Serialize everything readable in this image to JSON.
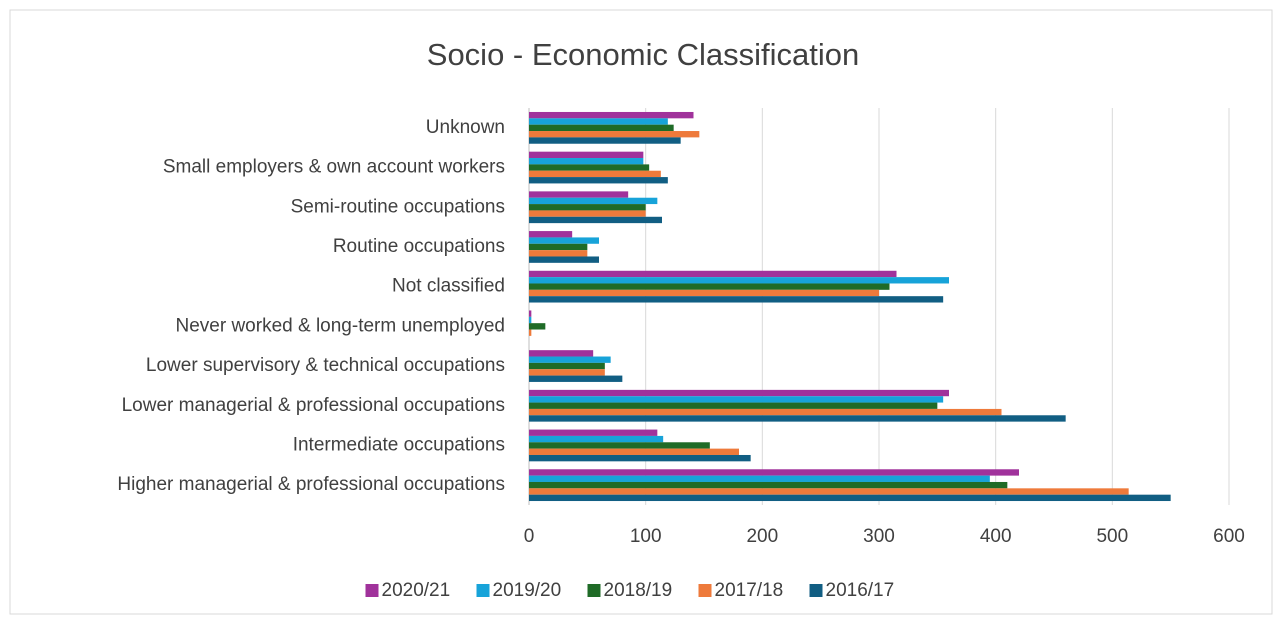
{
  "chart_data": {
    "type": "bar",
    "orientation": "horizontal",
    "title": "Socio - Economic Classification",
    "categories": [
      "Unknown",
      "Small employers & own account workers",
      "Semi-routine occupations",
      "Routine occupations",
      "Not classified",
      "Never worked & long-term unemployed",
      "Lower supervisory & technical occupations",
      "Lower managerial & professional occupations",
      "Intermediate occupations",
      "Higher managerial & professional occupations"
    ],
    "series": [
      {
        "name": "2020/21",
        "color": "#a0329b",
        "values": [
          141,
          98,
          85,
          37,
          315,
          2,
          55,
          360,
          110,
          420
        ]
      },
      {
        "name": "2019/20",
        "color": "#17a3d9",
        "values": [
          119,
          98,
          110,
          60,
          360,
          2,
          70,
          355,
          115,
          395
        ]
      },
      {
        "name": "2018/19",
        "color": "#1f6b27",
        "values": [
          124,
          103,
          100,
          50,
          309,
          14,
          65,
          350,
          155,
          410
        ]
      },
      {
        "name": "2017/18",
        "color": "#ee7a3b",
        "values": [
          146,
          113,
          100,
          50,
          300,
          2,
          65,
          405,
          180,
          514
        ]
      },
      {
        "name": "2016/17",
        "color": "#115e83",
        "values": [
          130,
          119,
          114,
          60,
          355,
          0,
          80,
          460,
          190,
          550
        ]
      }
    ],
    "xlim": [
      0,
      600
    ],
    "xticks": [
      0,
      100,
      200,
      300,
      400,
      500,
      600
    ],
    "grid": true,
    "legend": "bottom"
  }
}
